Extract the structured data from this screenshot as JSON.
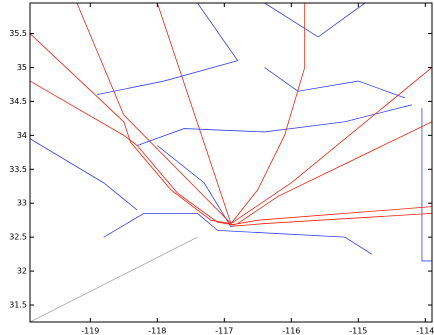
{
  "chart_data": {
    "type": "line",
    "xlim": [
      -119.9,
      -113.9
    ],
    "ylim": [
      31.25,
      35.95
    ],
    "xticks": [
      -119,
      -118,
      -117,
      -116,
      -115,
      -114
    ],
    "yticks": [
      31.5,
      32,
      32.5,
      33,
      33.5,
      34,
      34.5,
      35,
      35.5
    ],
    "series": [
      {
        "color": "#3344ee",
        "x": [
          -119.9,
          -118.8,
          -118.3
        ],
        "values": [
          33.95,
          33.3,
          32.9
        ]
      },
      {
        "color": "#3344ee",
        "x": [
          -118.0,
          -117.3,
          -116.9
        ],
        "values": [
          33.85,
          33.3,
          32.65
        ]
      },
      {
        "color": "#3344ee",
        "x": [
          -118.3,
          -117.6,
          -116.4,
          -115.2,
          -114.2
        ],
        "values": [
          33.85,
          34.1,
          34.05,
          34.2,
          34.45
        ]
      },
      {
        "color": "#3344ee",
        "x": [
          -118.8,
          -118.2,
          -117.4,
          -117.1,
          -115.2,
          -114.8
        ],
        "values": [
          32.5,
          32.85,
          32.85,
          32.6,
          32.5,
          32.25
        ]
      },
      {
        "color": "#3344ee",
        "x": [
          -117.4,
          -116.8,
          -117.9,
          -118.9
        ],
        "values": [
          35.95,
          35.1,
          34.8,
          34.6
        ]
      },
      {
        "color": "#3344ee",
        "x": [
          -116.4,
          -115.6,
          -114.9
        ],
        "values": [
          35.95,
          35.45,
          35.95
        ]
      },
      {
        "color": "#3344ee",
        "x": [
          -116.4,
          -115.9,
          -115.0,
          -114.3
        ],
        "values": [
          35.0,
          34.65,
          34.8,
          34.55
        ]
      },
      {
        "color": "#3344ee",
        "x": [
          -114.05,
          -114.05,
          -113.9
        ],
        "values": [
          34.4,
          32.15,
          32.15
        ]
      },
      {
        "color": "#aaaaaa",
        "x": [
          -119.9,
          -117.4
        ],
        "values": [
          31.25,
          32.5
        ]
      },
      {
        "color": "#ee2211",
        "x": [
          -119.9,
          -118.5,
          -118.4,
          -117.8,
          -117.2,
          -116.9
        ],
        "values": [
          35.5,
          34.2,
          33.9,
          33.2,
          32.75,
          32.7
        ]
      },
      {
        "color": "#ee2211",
        "x": [
          -119.9,
          -118.5,
          -118.3,
          -117.7,
          -117.1,
          -116.85
        ],
        "values": [
          34.8,
          34.0,
          33.85,
          33.15,
          32.72,
          32.68
        ]
      },
      {
        "color": "#ee2211",
        "x": [
          -119.2,
          -118.5,
          -117.5,
          -116.9
        ],
        "values": [
          35.95,
          34.3,
          33.3,
          32.7
        ]
      },
      {
        "color": "#ee2211",
        "x": [
          -118.0,
          -116.9
        ],
        "values": [
          35.95,
          32.7
        ]
      },
      {
        "color": "#ee2211",
        "x": [
          -115.8,
          -115.8,
          -116.1,
          -116.5,
          -116.9
        ],
        "values": [
          35.95,
          35.0,
          34.0,
          33.2,
          32.7
        ]
      },
      {
        "color": "#ee2211",
        "x": [
          -113.9,
          -116.0,
          -116.9
        ],
        "values": [
          35.0,
          33.3,
          32.7
        ]
      },
      {
        "color": "#ee2211",
        "x": [
          -113.9,
          -116.2,
          -116.8
        ],
        "values": [
          34.2,
          33.1,
          32.7
        ]
      },
      {
        "color": "#ee2211",
        "x": [
          -113.9,
          -116.5,
          -116.9
        ],
        "values": [
          32.95,
          32.75,
          32.68
        ]
      },
      {
        "color": "#ee2211",
        "x": [
          -113.9,
          -116.4,
          -116.9
        ],
        "values": [
          32.85,
          32.7,
          32.66
        ]
      }
    ]
  }
}
